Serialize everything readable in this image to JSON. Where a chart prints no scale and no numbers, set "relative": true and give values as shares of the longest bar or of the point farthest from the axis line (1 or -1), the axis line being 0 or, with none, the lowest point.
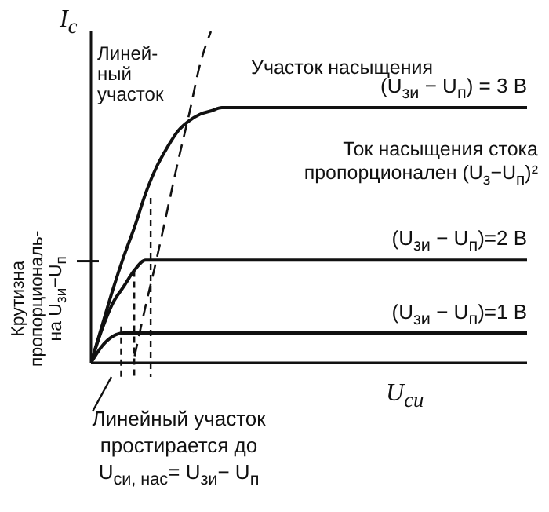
{
  "chart_data": {
    "type": "line",
    "relative": true,
    "ylabel": "I$_{с}$",
    "xlabel": "U$_{си}$",
    "categories": [
      null,
      null,
      null,
      null,
      null,
      null,
      null,
      null,
      null,
      null,
      null,
      null,
      null,
      null,
      null,
      null,
      null,
      null,
      null,
      null,
      null,
      null,
      null,
      null,
      null,
      null,
      null,
      null,
      null,
      null,
      null,
      null,
      null,
      null,
      null,
      null,
      null,
      null,
      null,
      null,
      null
    ],
    "series": [
      {
        "name": "(U$_{зи}$ − U$_{п}$) = 3 В",
        "color": "#111111",
        "values": [
          0,
          0.11,
          0.22,
          0.32,
          0.41,
          0.51,
          0.59,
          0.65,
          0.7,
          0.73,
          0.75,
          0.76,
          0.77,
          0.77,
          0.77,
          0.77,
          0.77,
          0.77,
          0.77,
          0.77,
          0.77,
          0.77,
          0.77,
          0.77,
          0.77,
          0.77,
          0.77,
          0.77,
          0.77,
          0.77,
          0.77,
          0.77,
          0.77,
          0.77,
          0.77,
          0.77,
          0.77,
          0.77,
          0.77,
          0.77,
          0.77
        ]
      },
      {
        "name": "(U$_{зи}$ − U$_{п}$)=2 В",
        "color": "#111111",
        "values": [
          0,
          0.1,
          0.18,
          0.23,
          0.28,
          0.31,
          0.31,
          0.31,
          0.31,
          0.31,
          0.31,
          0.31,
          0.31,
          0.31,
          0.31,
          0.31,
          0.31,
          0.31,
          0.31,
          0.31,
          0.31,
          0.31,
          0.31,
          0.31,
          0.31,
          0.31,
          0.31,
          0.31,
          0.31,
          0.31,
          0.31,
          0.31,
          0.31,
          0.31,
          0.31,
          0.31,
          0.31,
          0.31,
          0.31,
          0.31,
          0.31
        ]
      },
      {
        "name": "(U$_{зи}$ − U$_{п}$)=1 В",
        "color": "#111111",
        "values": [
          0,
          0.05,
          0.08,
          0.09,
          0.09,
          0.09,
          0.09,
          0.09,
          0.09,
          0.09,
          0.09,
          0.09,
          0.09,
          0.09,
          0.09,
          0.09,
          0.09,
          0.09,
          0.09,
          0.09,
          0.09,
          0.09,
          0.09,
          0.09,
          0.09,
          0.09,
          0.09,
          0.09,
          0.09,
          0.09,
          0.09,
          0.09,
          0.09,
          0.09,
          0.09,
          0.09,
          0.09,
          0.09,
          0.09,
          0.09,
          0.09
        ]
      },
      {
        "color": "#111111",
        "line_style": "dashed",
        "values": [
          null,
          null,
          null,
          null,
          0.02,
          0.17,
          0.31,
          0.46,
          0.61,
          0.75,
          0.9,
          1,
          null,
          null,
          null,
          null,
          null,
          null,
          null,
          null,
          null,
          null,
          null,
          null,
          null,
          null,
          null,
          null,
          null,
          null,
          null,
          null,
          null,
          null,
          null,
          null,
          null,
          null,
          null,
          null,
          null
        ]
      }
    ],
    "annotations": [
      "Линей-\nный\nучасток",
      "Участок насыщения",
      "Ток насыщения стока пропорционален (U$_{з}$−U$_{п}$)²",
      "Крутизна\nпропорциональ-\nна U$_{зи}$−U$_{п}$",
      "Линейный участок\nпростирается до\nU$_{си, нас}$= U$_{зи}$− U$_{п}$"
    ],
    "line_style": "solid",
    "marker": "none",
    "grid": false,
    "legend": false
  }
}
